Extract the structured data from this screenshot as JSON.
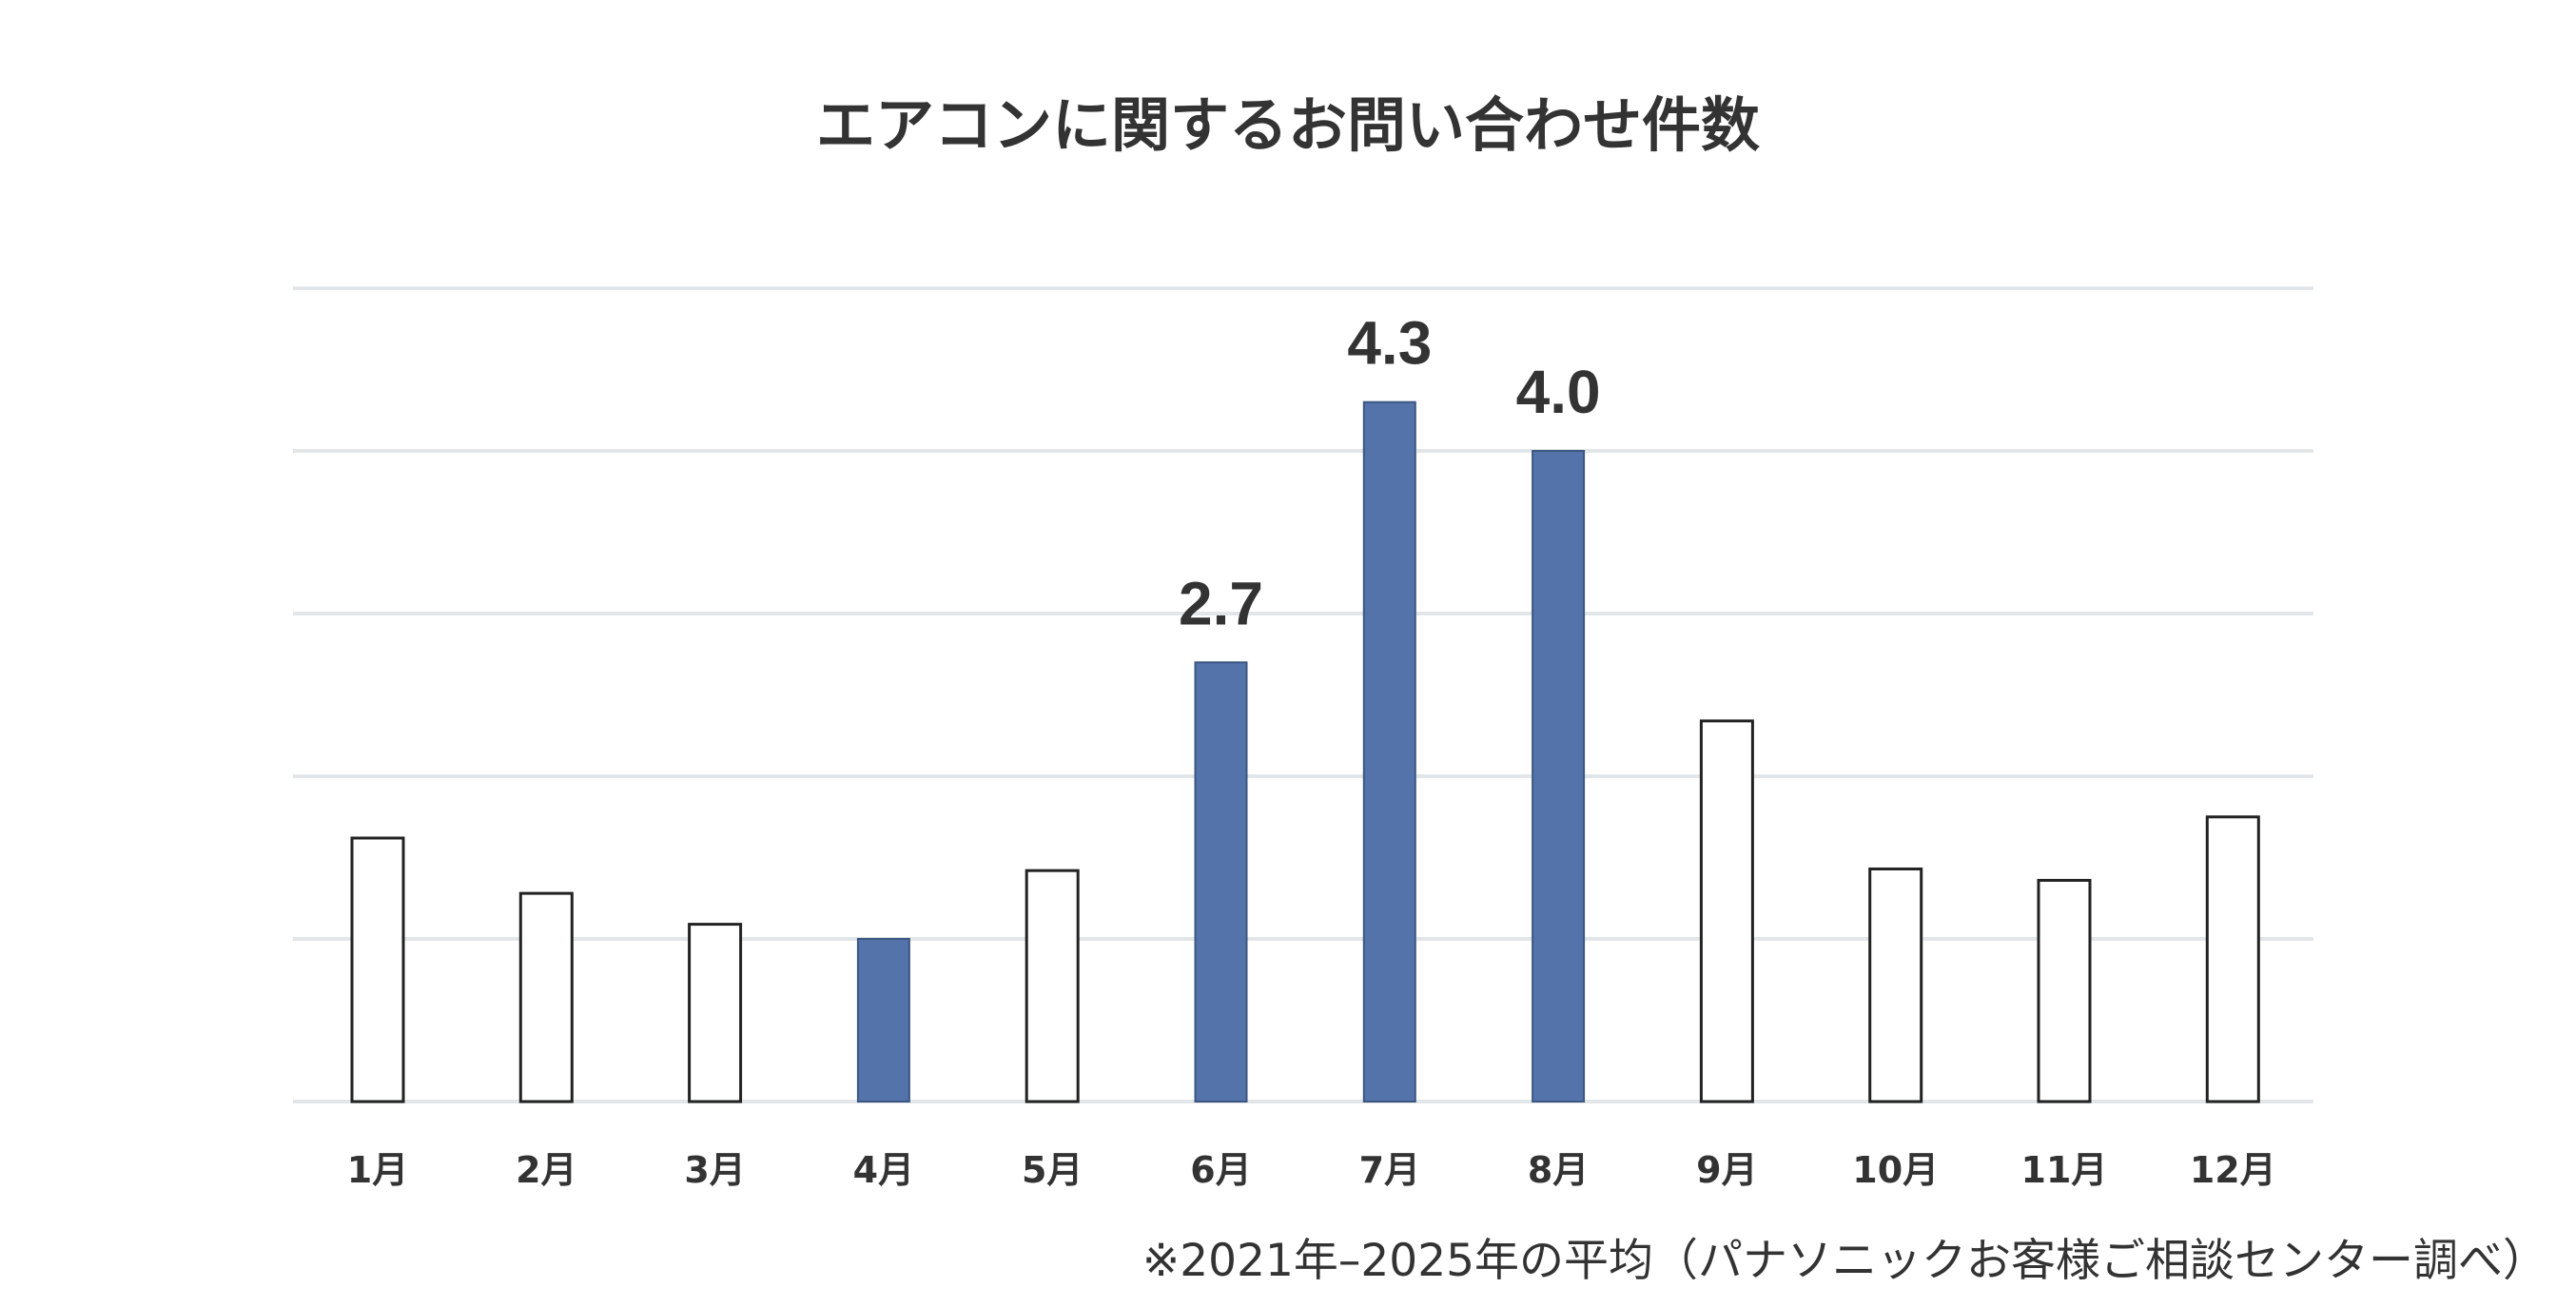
{
  "chart_data": {
    "type": "bar",
    "title": "エアコンに関するお問い合わせ件数",
    "categories": [
      "1月",
      "2月",
      "3月",
      "4月",
      "5月",
      "6月",
      "7月",
      "8月",
      "9月",
      "10月",
      "11月",
      "12月"
    ],
    "values": [
      1.62,
      1.28,
      1.09,
      1.0,
      1.42,
      2.7,
      4.3,
      4.0,
      2.34,
      1.43,
      1.36,
      1.75
    ],
    "highlighted": [
      false,
      false,
      false,
      true,
      false,
      true,
      true,
      true,
      false,
      false,
      false,
      false
    ],
    "data_labels": [
      "",
      "",
      "",
      "",
      "",
      "2.7",
      "4.3",
      "4.0",
      "",
      "",
      "",
      ""
    ],
    "ylim": [
      0,
      5
    ],
    "gridlines": [
      0,
      1,
      2,
      3,
      4,
      5
    ],
    "grid": true,
    "xlabel": "",
    "ylabel": "",
    "note": "※2021年–2025年の平均（パナソニックお客様ご相談センター調べ）",
    "colors": {
      "highlight_fill": "#5373aa",
      "highlight_stroke": "#3d5782",
      "outline_fill": "#ffffff",
      "outline_stroke": "#222222",
      "grid": "#e3e6e8",
      "text": "#333333"
    }
  }
}
